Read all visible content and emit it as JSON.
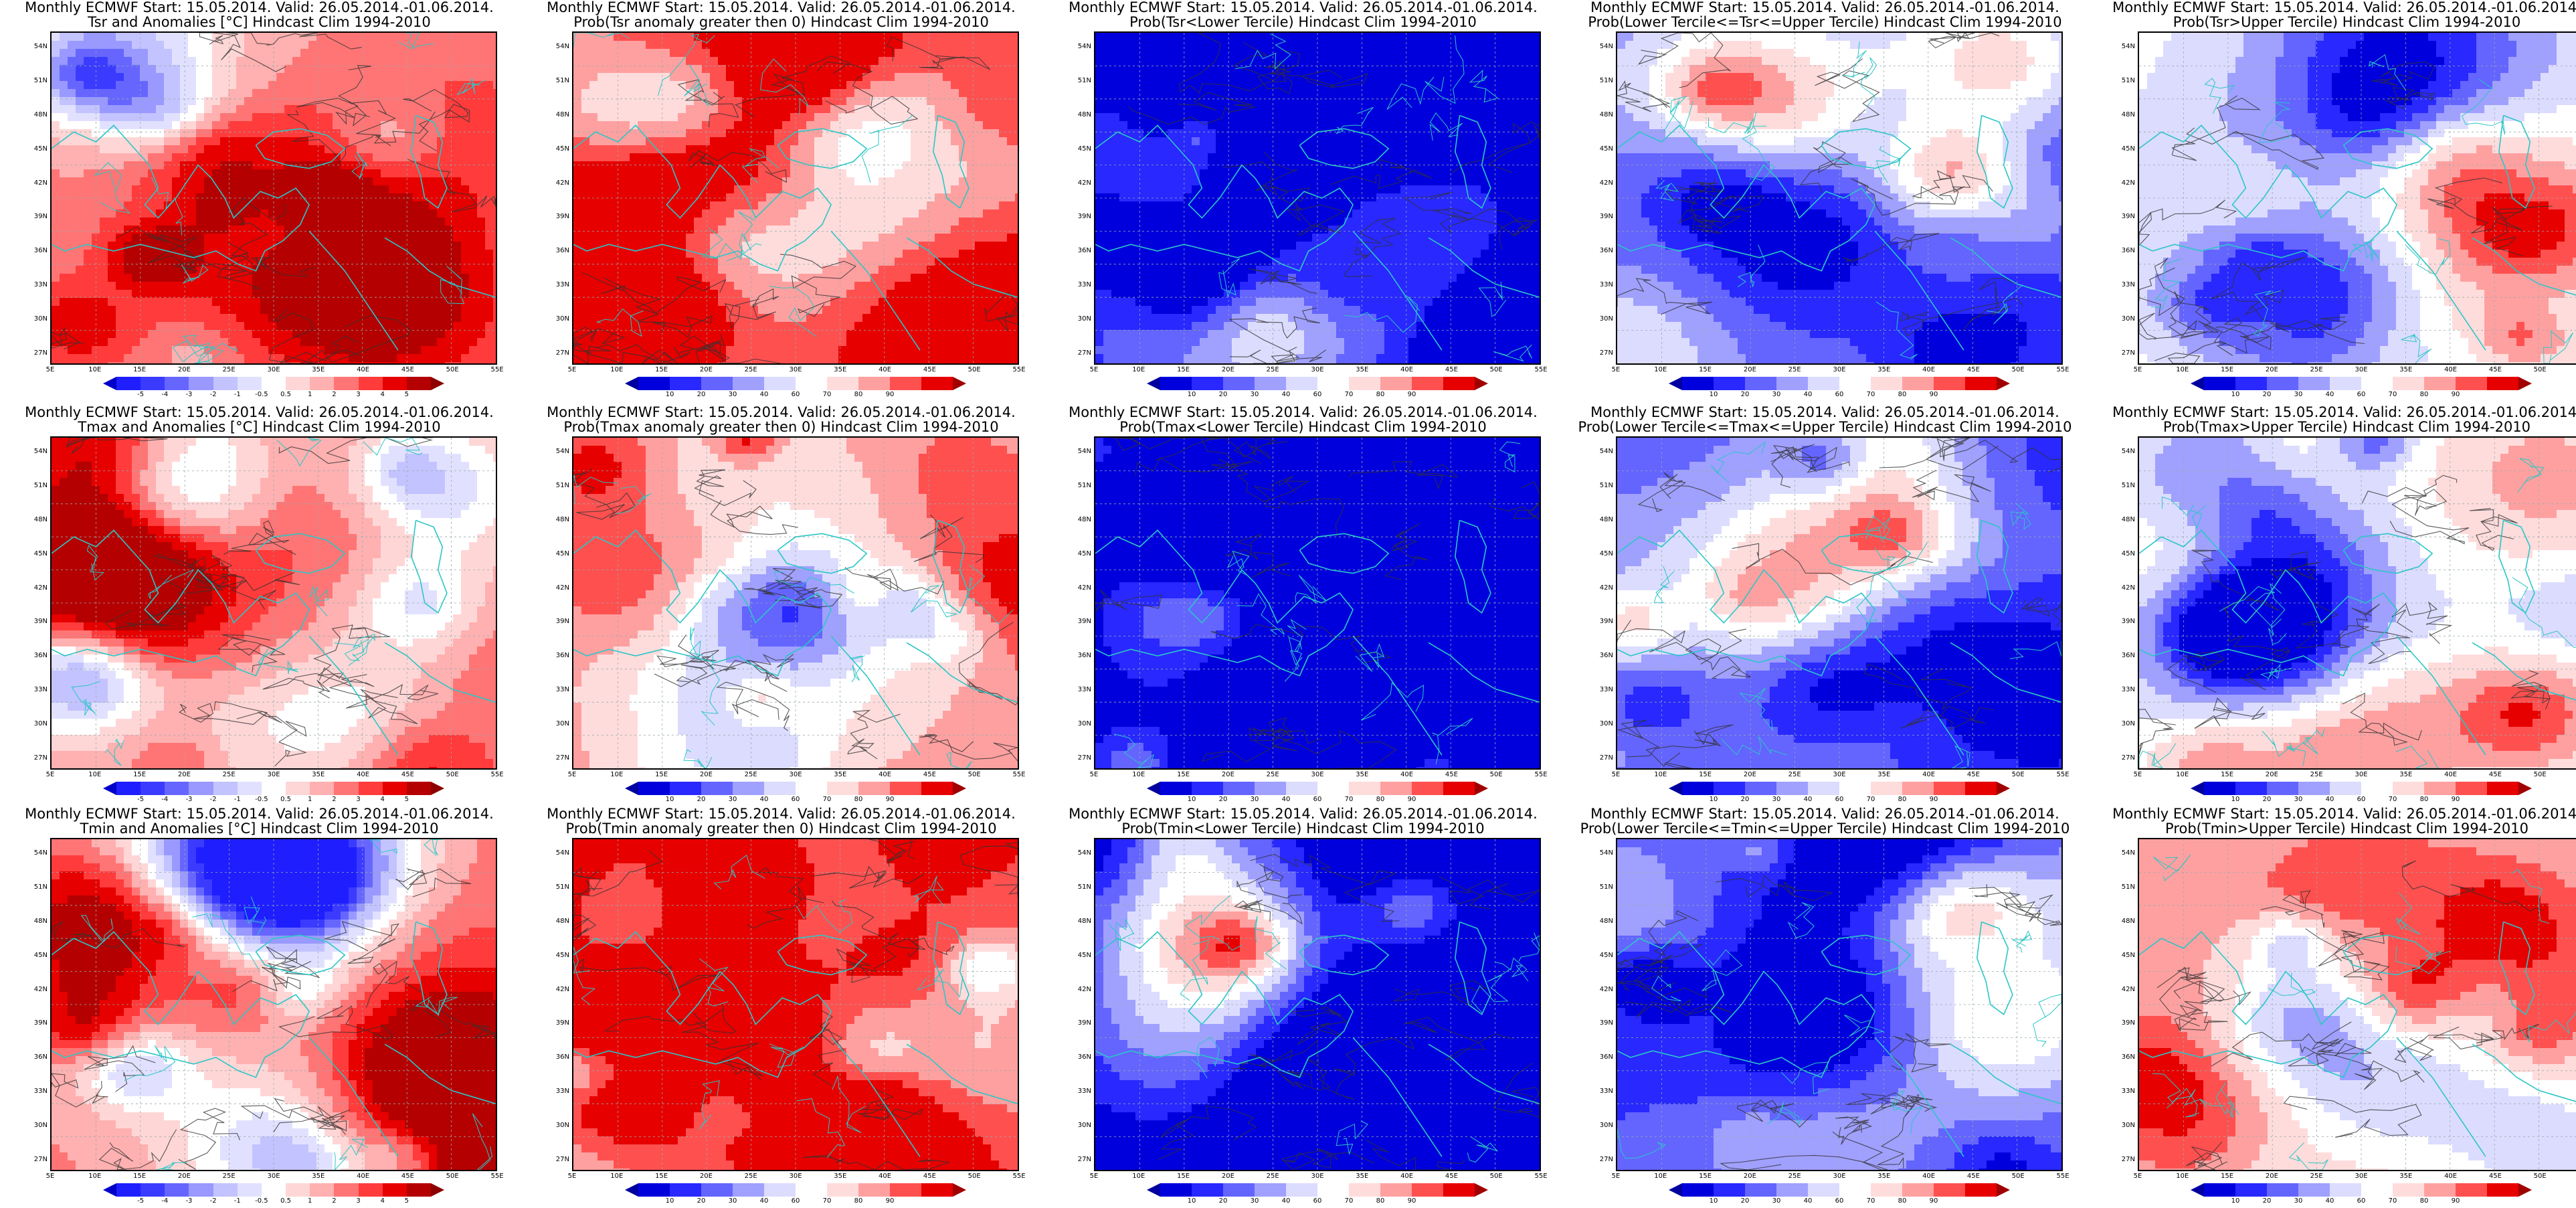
{
  "ylabels": [
    "54N",
    "51N",
    "48N",
    "45N",
    "42N",
    "39N",
    "36N",
    "33N",
    "30N",
    "27N"
  ],
  "xlabels": [
    "5E",
    "10E",
    "15E",
    "20E",
    "25E",
    "30E",
    "35E",
    "40E",
    "45E",
    "50E",
    "55E"
  ],
  "common_title": "Monthly ECMWF Start: 15.05.2014. Valid: 26.05.2014.-01.06.2014.",
  "colorbars": {
    "anomaly": {
      "labels": [
        "-5",
        "-4",
        "-3",
        "-2",
        "-1",
        "-0.5",
        "0.5",
        "1",
        "2",
        "3",
        "4",
        "5"
      ],
      "colors": [
        "#1e1eff",
        "#3b3bff",
        "#6666ff",
        "#9999ff",
        "#c3c3ff",
        "#e1e1ff",
        "#ffffff",
        "#ffd6d6",
        "#ffb0b0",
        "#ff7575",
        "#ff3b3b",
        "#e60000",
        "#b40000"
      ],
      "tipL": "#0000c8",
      "tipR": "#8c0000"
    },
    "prob": {
      "labels": [
        "10",
        "20",
        "30",
        "40",
        "60",
        "70",
        "80",
        "90"
      ],
      "colors": [
        "#0000dc",
        "#2828ff",
        "#6464ff",
        "#a0a0ff",
        "#dcdcff",
        "#ffffff",
        "#ffdcdc",
        "#ffa0a0",
        "#ff5050",
        "#e60000"
      ],
      "tipL": "#0000a0",
      "tipR": "#a00000"
    }
  },
  "rows": [
    {
      "variable": "Tsr",
      "panels": [
        {
          "line2": "Tsr and Anomalies [°C] Hindcast Clim 1994-2010",
          "kind": "anomaly",
          "red": 0.55,
          "blue": 0.15
        },
        {
          "line2": "Prob(Tsr anomaly greater then 0) Hindcast Clim 1994-2010",
          "kind": "prob",
          "red": 0.7,
          "blue": 0.2
        },
        {
          "line2": "Prob(Tsr<Lower Tercile) Hindcast Clim 1994-2010",
          "kind": "prob",
          "red": 0.02,
          "blue": 0.95
        },
        {
          "line2": "Prob(Lower Tercile<=Tsr<=Upper Tercile) Hindcast Clim 1994-2010",
          "kind": "prob",
          "red": 0.08,
          "blue": 0.5
        },
        {
          "line2": "Prob(Tsr>Upper Tercile) Hindcast Clim 1994-2010",
          "kind": "prob",
          "red": 0.5,
          "blue": 0.45
        }
      ]
    },
    {
      "variable": "Tmax",
      "panels": [
        {
          "line2": "Tmax and Anomalies [°C] Hindcast Clim 1994-2010",
          "kind": "anomaly",
          "red": 0.55,
          "blue": 0.15
        },
        {
          "line2": "Prob(Tmax anomaly greater then 0) Hindcast Clim 1994-2010",
          "kind": "prob",
          "red": 0.65,
          "blue": 0.2
        },
        {
          "line2": "Prob(Tmax<Lower Tercile) Hindcast Clim 1994-2010",
          "kind": "prob",
          "red": 0.02,
          "blue": 0.95
        },
        {
          "line2": "Prob(Lower Tercile<=Tmax<=Upper Tercile) Hindcast Clim 1994-2010",
          "kind": "prob",
          "red": 0.08,
          "blue": 0.5
        },
        {
          "line2": "Prob(Tmax>Upper Tercile) Hindcast Clim 1994-2010",
          "kind": "prob",
          "red": 0.45,
          "blue": 0.45
        }
      ]
    },
    {
      "variable": "Tmin",
      "panels": [
        {
          "line2": "Tmin and Anomalies [°C] Hindcast Clim 1994-2010",
          "kind": "anomaly",
          "red": 0.5,
          "blue": 0.15
        },
        {
          "line2": "Prob(Tmin anomaly greater then 0) Hindcast Clim 1994-2010",
          "kind": "prob",
          "red": 0.85,
          "blue": 0.1
        },
        {
          "line2": "Prob(Tmin<Lower Tercile) Hindcast Clim 1994-2010",
          "kind": "prob",
          "red": 0.02,
          "blue": 0.97
        },
        {
          "line2": "Prob(Lower Tercile<=Tmin<=Upper Tercile) Hindcast Clim 1994-2010",
          "kind": "prob",
          "red": 0.05,
          "blue": 0.6
        },
        {
          "line2": "Prob(Tmin>Upper Tercile) Hindcast Clim 1994-2010",
          "kind": "prob",
          "red": 0.6,
          "blue": 0.3
        }
      ]
    }
  ]
}
